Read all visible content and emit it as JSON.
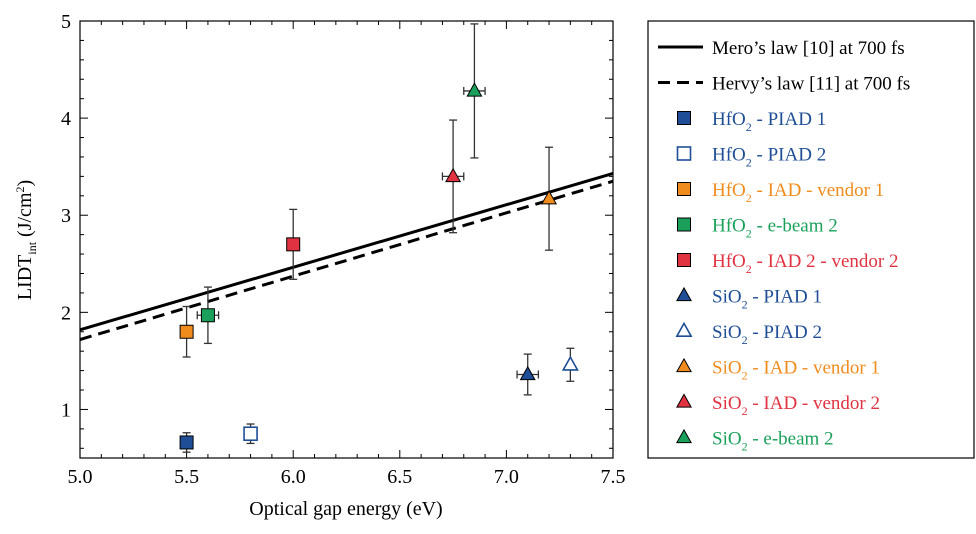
{
  "chart_data": {
    "type": "scatter",
    "xlabel": "Optical gap energy (eV)",
    "ylabel": {
      "main": "LIDT",
      "sub": "int",
      "unit": " (J/cm",
      "sup": "2",
      "close": ")"
    },
    "xlim": [
      5.0,
      7.5
    ],
    "ylim": [
      0.5,
      5.0
    ],
    "xticks": [
      "5.0",
      "5.5",
      "6.0",
      "6.5",
      "7.0",
      "7.5"
    ],
    "yticks": [
      "1",
      "2",
      "3",
      "4",
      "5"
    ],
    "grid": false,
    "legend_position": "right, outside plot",
    "lines": [
      {
        "name": "Mero’s law [10] at 700 fs",
        "style": "solid",
        "color": "#000000",
        "x": [
          5.0,
          7.5
        ],
        "y": [
          1.82,
          3.43
        ]
      },
      {
        "name": "Hervy’s law [11] at 700 fs",
        "style": "dashed",
        "color": "#000000",
        "x": [
          5.0,
          7.5
        ],
        "y": [
          1.72,
          3.35
        ]
      }
    ],
    "series": [
      {
        "material": "HfO",
        "sub": "2",
        "name": " - PIAD 1",
        "marker": "square",
        "filled": true,
        "color": "#1f4e96",
        "points": [
          {
            "x": 5.5,
            "y": 0.66,
            "yerr": 0.1,
            "xerr": 0.0
          }
        ]
      },
      {
        "material": "HfO",
        "sub": "2",
        "name": " - PIAD 2",
        "marker": "square",
        "filled": false,
        "color": "#1f4e96",
        "points": [
          {
            "x": 5.8,
            "y": 0.75,
            "yerr": 0.1,
            "xerr": 0.0
          }
        ]
      },
      {
        "material": "HfO",
        "sub": "2",
        "name": " - IAD - vendor 1",
        "marker": "square",
        "filled": true,
        "color": "#f08c1e",
        "points": [
          {
            "x": 5.5,
            "y": 1.8,
            "yerr": 0.26,
            "xerr": 0.0
          }
        ]
      },
      {
        "material": "HfO",
        "sub": "2",
        "name": " - e-beam 2",
        "marker": "square",
        "filled": true,
        "color": "#1aa05a",
        "points": [
          {
            "x": 5.6,
            "y": 1.97,
            "yerr": 0.29,
            "xerr": 0.05
          }
        ]
      },
      {
        "material": "HfO",
        "sub": "2",
        "name": " - IAD 2 - vendor 2",
        "marker": "square",
        "filled": true,
        "color": "#e03241",
        "points": [
          {
            "x": 6.0,
            "y": 2.7,
            "yerr": 0.36,
            "xerr": 0.0
          }
        ]
      },
      {
        "material": "SiO",
        "sub": "2",
        "name": " - PIAD 1",
        "marker": "triangle",
        "filled": true,
        "color": "#1f4e96",
        "points": [
          {
            "x": 7.1,
            "y": 1.36,
            "yerr": 0.21,
            "xerr": 0.05
          }
        ]
      },
      {
        "material": "SiO",
        "sub": "2",
        "name": " - PIAD 2",
        "marker": "triangle",
        "filled": false,
        "color": "#1f4e96",
        "points": [
          {
            "x": 7.3,
            "y": 1.46,
            "yerr": 0.17,
            "xerr": 0.0
          }
        ]
      },
      {
        "material": "SiO",
        "sub": "2",
        "name": " - IAD - vendor 1",
        "marker": "triangle",
        "filled": true,
        "color": "#f08c1e",
        "points": [
          {
            "x": 7.2,
            "y": 3.17,
            "yerr": 0.53,
            "xerr": 0.0
          }
        ]
      },
      {
        "material": "SiO",
        "sub": "2",
        "name": " - IAD - vendor 2",
        "marker": "triangle",
        "filled": true,
        "color": "#e03241",
        "points": [
          {
            "x": 6.75,
            "y": 3.4,
            "yerr": 0.58,
            "xerr": 0.05
          }
        ]
      },
      {
        "material": "SiO",
        "sub": "2",
        "name": " - e-beam 2",
        "marker": "triangle",
        "filled": true,
        "color": "#1aa05a",
        "points": [
          {
            "x": 6.85,
            "y": 4.28,
            "yerr": 0.69,
            "xerr": 0.05
          }
        ]
      }
    ]
  }
}
